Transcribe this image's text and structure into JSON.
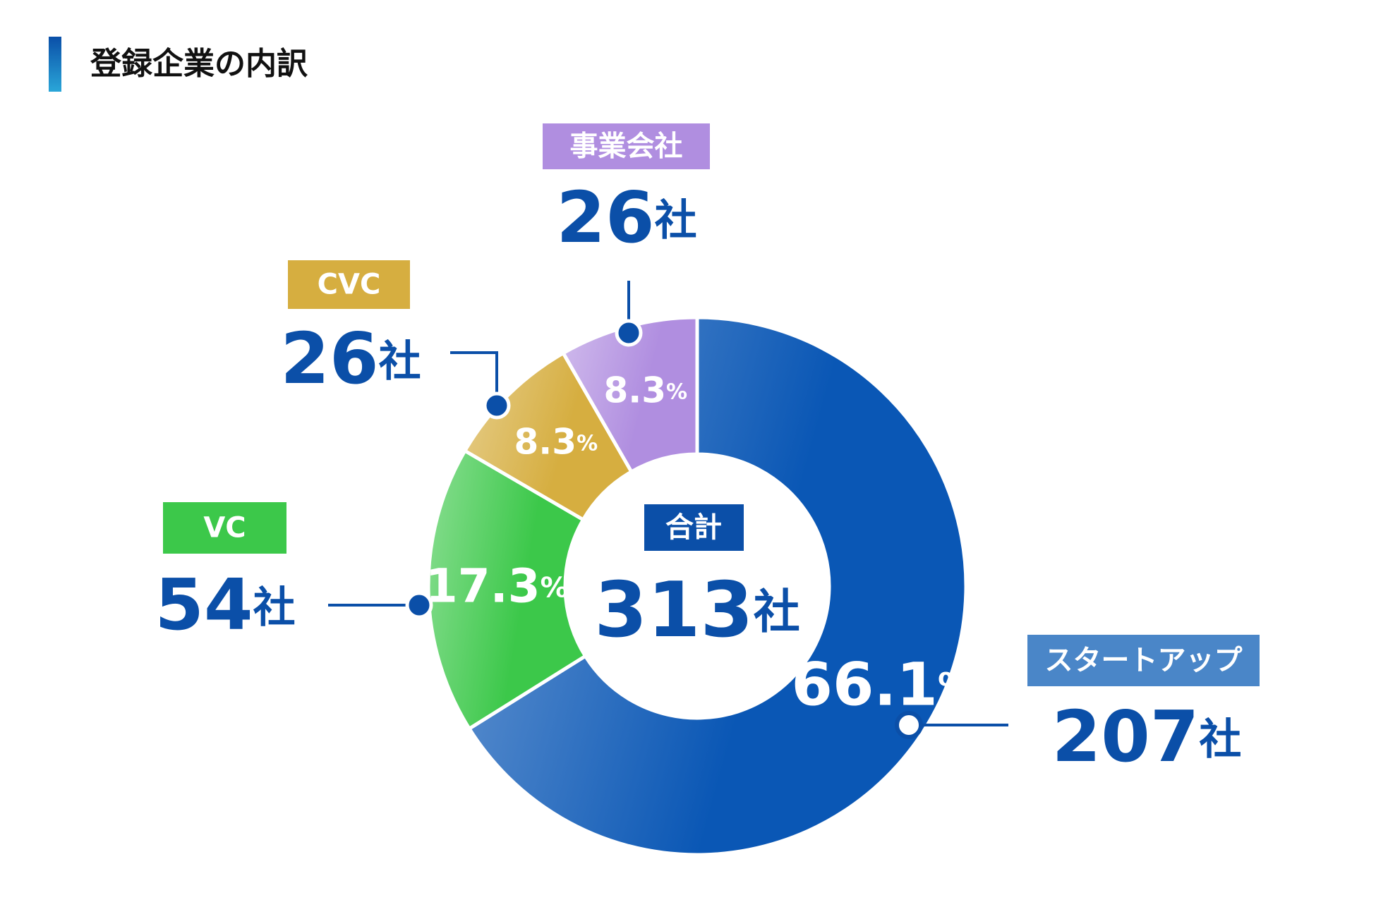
{
  "title": "登録企業の内訳",
  "chart_data": {
    "type": "donut",
    "categories": [
      "スタートアップ",
      "VC",
      "CVC",
      "事業会社"
    ],
    "values": [
      66.1,
      17.3,
      8.3,
      8.3
    ],
    "value_labels": [
      "66.1%",
      "17.3%",
      "8.3%",
      "8.3%"
    ],
    "colors": [
      "#0a57b5",
      "#3cc84a",
      "#d6ae40",
      "#b08ee0"
    ],
    "counts": [
      207,
      54,
      26,
      26
    ],
    "count_labels": [
      "207社",
      "54社",
      "26社",
      "26社"
    ],
    "total_title": "合計",
    "total": 313,
    "total_label": "313社"
  }
}
